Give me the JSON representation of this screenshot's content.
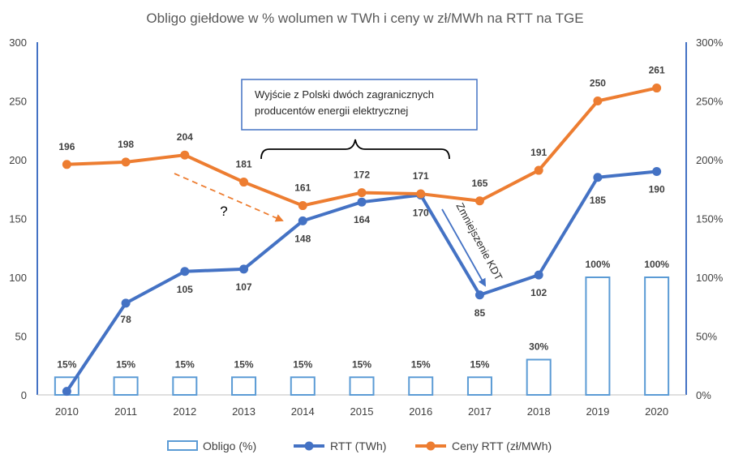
{
  "chart_data": {
    "type": "bar+line",
    "title": "Obligo giełdowe w % wolumen w TWh i ceny w zł/MWh na RTT na TGE",
    "categories": [
      "2010",
      "2011",
      "2012",
      "2013",
      "2014",
      "2015",
      "2016",
      "2017",
      "2018",
      "2019",
      "2020"
    ],
    "y_left": {
      "ylim": [
        0,
        300
      ],
      "ticks": [
        "0",
        "50",
        "100",
        "150",
        "200",
        "250",
        "300"
      ]
    },
    "y_right": {
      "ylim": [
        0,
        300
      ],
      "ticks": [
        "0%",
        "50%",
        "100%",
        "150%",
        "200%",
        "250%",
        "300%"
      ]
    },
    "series": [
      {
        "name": "Obligo (%)",
        "type": "bar",
        "axis": "right",
        "color": "#5B9BD5",
        "values": [
          15,
          15,
          15,
          15,
          15,
          15,
          15,
          15,
          30,
          100,
          100
        ],
        "labels": [
          "15%",
          "15%",
          "15%",
          "15%",
          "15%",
          "15%",
          "15%",
          "15%",
          "30%",
          "100%",
          "100%"
        ]
      },
      {
        "name": "RTT (TWh)",
        "type": "line",
        "axis": "left",
        "color": "#4472C4",
        "values": [
          3,
          78,
          105,
          107,
          148,
          164,
          170,
          85,
          102,
          185,
          190
        ],
        "labels": [
          "",
          "78",
          "105",
          "107",
          "148",
          "164",
          "170",
          "85",
          "102",
          "185",
          "190"
        ]
      },
      {
        "name": "Ceny RTT (zł/MWh)",
        "type": "line",
        "axis": "left",
        "color": "#ED7D31",
        "values": [
          196,
          198,
          204,
          181,
          161,
          172,
          171,
          165,
          191,
          250,
          261
        ],
        "labels": [
          "196",
          "198",
          "204",
          "181",
          "161",
          "172",
          "171",
          "165",
          "191",
          "250",
          "261"
        ]
      }
    ],
    "annotations": {
      "box_line1": "Wyjście z Polski dwóch zagranicznych",
      "box_line2": "producentów energii elektrycznej",
      "question": "?",
      "kdt": "Zmniejszenie KDT"
    },
    "legend_position": "bottom",
    "grid": false
  }
}
